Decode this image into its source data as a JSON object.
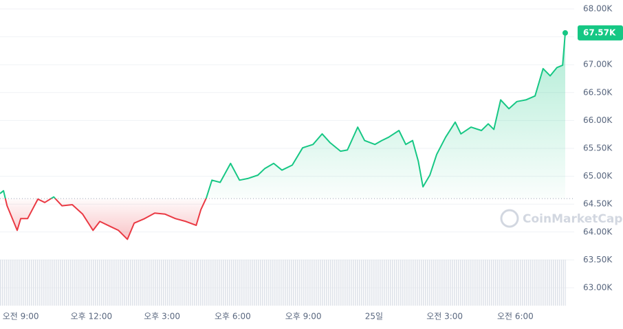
{
  "chart_data": {
    "type": "line",
    "watermark": "CoinMarketCap",
    "baseline": 64.6,
    "up_color": "#16c784",
    "down_color": "#ea3943",
    "xlim": [
      -0.88,
      23.5
    ],
    "xticks": [
      {
        "value": 0,
        "label": "오전 9:00"
      },
      {
        "value": 3,
        "label": "오후 12:00"
      },
      {
        "value": 6,
        "label": "오후 3:00"
      },
      {
        "value": 9,
        "label": "오후 6:00"
      },
      {
        "value": 12,
        "label": "오후 9:00"
      },
      {
        "value": 15,
        "label": "25일"
      },
      {
        "value": 18,
        "label": "오전 3:00"
      },
      {
        "value": 21,
        "label": "오전 6:00"
      }
    ],
    "ylim": [
      62.68,
      68.16
    ],
    "yticks": [
      {
        "value": 63,
        "label": "63.00K"
      },
      {
        "value": 63.5,
        "label": "63.50K"
      },
      {
        "value": 64,
        "label": "64.00K"
      },
      {
        "value": 64.5,
        "label": "64.50K"
      },
      {
        "value": 65,
        "label": "65.00K"
      },
      {
        "value": 65.5,
        "label": "65.50K"
      },
      {
        "value": 66,
        "label": "66.00K"
      },
      {
        "value": 66.5,
        "label": "66.50K"
      },
      {
        "value": 67,
        "label": "67.00K"
      },
      {
        "value": 67.5,
        "label": "67.50K"
      },
      {
        "value": 68,
        "label": "68.00K"
      }
    ],
    "grid": true,
    "x": [
      -0.88,
      -0.73,
      -0.58,
      -0.15,
      0,
      0.29,
      0.73,
      1.02,
      1.4,
      1.75,
      2.19,
      2.63,
      3.07,
      3.36,
      3.8,
      4.15,
      4.53,
      4.82,
      5.26,
      5.69,
      6.13,
      6.57,
      7.01,
      7.45,
      7.65,
      7.88,
      8.12,
      8.47,
      8.91,
      9.29,
      9.64,
      10.07,
      10.37,
      10.74,
      11.09,
      11.53,
      11.97,
      12.41,
      12.8,
      13.14,
      13.58,
      13.87,
      14.31,
      14.6,
      15.04,
      15.33,
      15.62,
      16.06,
      16.35,
      16.64,
      16.88,
      17.08,
      17.37,
      17.66,
      18.04,
      18.45,
      18.69,
      19.12,
      19.56,
      19.85,
      20.09,
      20.38,
      20.73,
      21.07,
      21.45,
      21.84,
      22.18,
      22.48,
      22.77,
      23.01,
      23.12
    ],
    "values": [
      64.69,
      64.74,
      64.47,
      64.03,
      64.24,
      64.24,
      64.59,
      64.53,
      64.63,
      64.47,
      64.49,
      64.32,
      64.03,
      64.19,
      64.1,
      64.03,
      63.87,
      64.16,
      64.24,
      64.34,
      64.32,
      64.24,
      64.19,
      64.12,
      64.4,
      64.61,
      64.93,
      64.89,
      65.23,
      64.93,
      64.96,
      65.02,
      65.14,
      65.23,
      65.11,
      65.2,
      65.51,
      65.57,
      65.76,
      65.6,
      65.45,
      65.47,
      65.88,
      65.64,
      65.57,
      65.64,
      65.7,
      65.82,
      65.57,
      65.64,
      65.27,
      64.81,
      65.02,
      65.39,
      65.7,
      65.97,
      65.76,
      65.88,
      65.82,
      65.94,
      65.84,
      66.37,
      66.21,
      66.34,
      66.37,
      66.44,
      66.93,
      66.8,
      66.95,
      66.99,
      67.57
    ],
    "last_label": "67.57K"
  }
}
